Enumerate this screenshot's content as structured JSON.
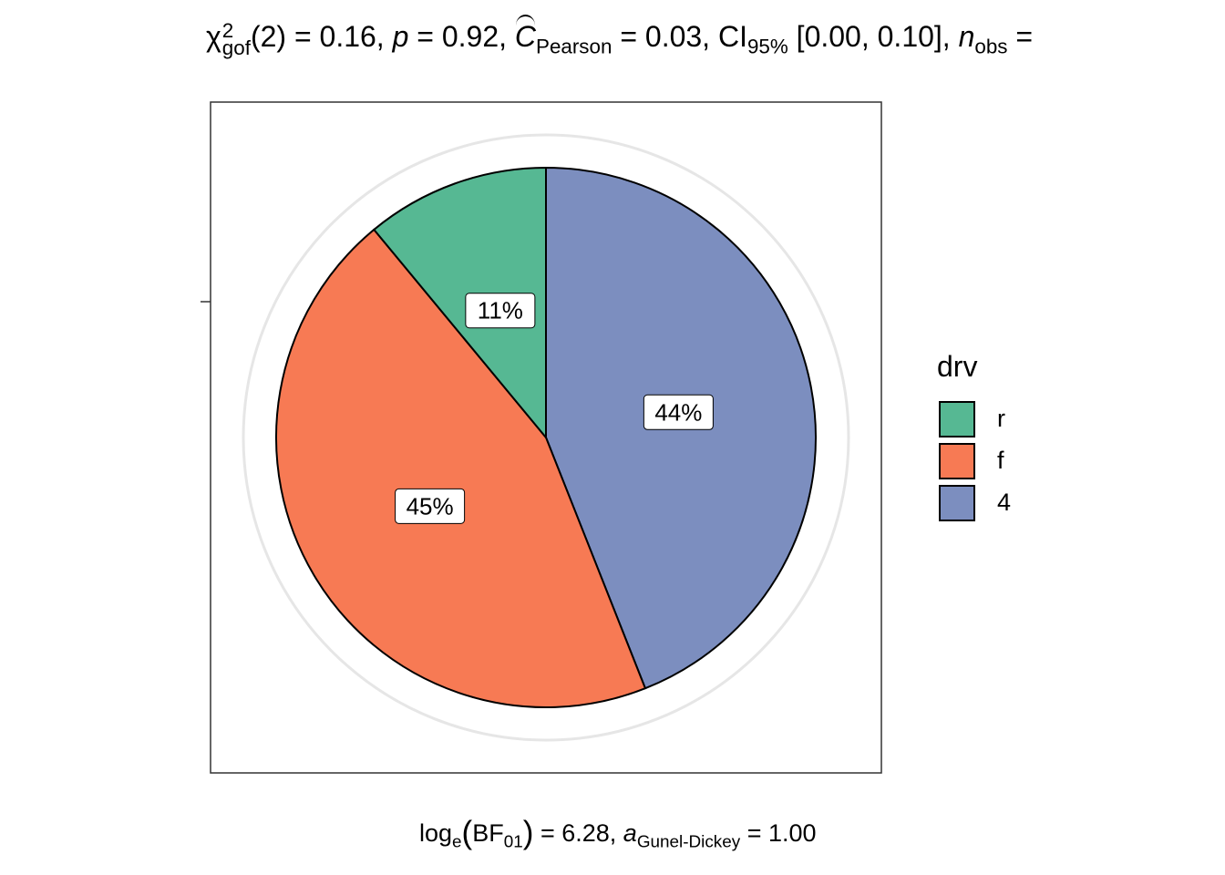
{
  "title": {
    "chi": "χ",
    "chi_sup": "2",
    "chi_sub": "gof",
    "df": "(2) = 0.16, ",
    "p_sym": "p",
    "p_val": " = 0.92, ",
    "c_sym": "C",
    "c_sub": "Pearson",
    "c_val": " = 0.03, CI",
    "ci_sub": "95%",
    "ci_val": " [0.00, 0.10], ",
    "n_sym": "n",
    "n_sub": "obs",
    "n_val": " ="
  },
  "caption": {
    "log": "log",
    "log_sub": "e",
    "bf": "BF",
    "bf_sub": "01",
    "bf_val": " = 6.28, ",
    "a_sym": "a",
    "a_sub": "Gunel-Dickey",
    "a_val": " = 1.00"
  },
  "legend": {
    "title": "drv"
  },
  "chart_data": {
    "type": "pie",
    "slices": [
      {
        "label": "r",
        "value": 11,
        "display": "11%",
        "color": "#56b893"
      },
      {
        "label": "f",
        "value": 45,
        "display": "45%",
        "color": "#f77a54"
      },
      {
        "label": "4",
        "value": 44,
        "display": "44%",
        "color": "#7c8ebf"
      }
    ],
    "slice_order": [
      "4",
      "f",
      "r"
    ],
    "start_angle": "12 o'clock",
    "direction": "clockwise",
    "legend_title": "drv",
    "legend_placement": "right",
    "panel_border": true,
    "grid": "outer circle"
  }
}
